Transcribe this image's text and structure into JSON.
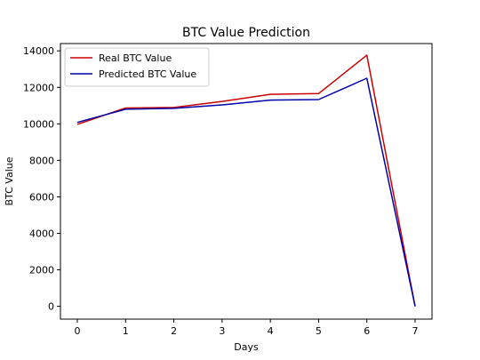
{
  "chart_data": {
    "type": "line",
    "title": "BTC Value Prediction",
    "xlabel": "Days",
    "ylabel": "BTC Value",
    "x": [
      0,
      1,
      2,
      3,
      4,
      5,
      6,
      7
    ],
    "xlim": [
      -0.35,
      7.35
    ],
    "ylim": [
      -700,
      14400
    ],
    "xticks": [
      "0",
      "1",
      "2",
      "3",
      "4",
      "5",
      "6",
      "7"
    ],
    "yticks": [
      0,
      2000,
      4000,
      6000,
      8000,
      10000,
      12000,
      14000
    ],
    "ytick_labels": [
      "0",
      "2000",
      "4000",
      "6000",
      "8000",
      "10000",
      "12000",
      "14000"
    ],
    "grid": false,
    "legend_position": "upper-left",
    "series": [
      {
        "name": "Real BTC Value",
        "color": "#cc0000",
        "values": [
          9970,
          10870,
          10900,
          11230,
          11620,
          11660,
          13760,
          0
        ]
      },
      {
        "name": "Predicted BTC Value",
        "color": "#0000aa",
        "values": [
          10080,
          10800,
          10850,
          11040,
          11300,
          11330,
          12500,
          0
        ]
      }
    ]
  }
}
